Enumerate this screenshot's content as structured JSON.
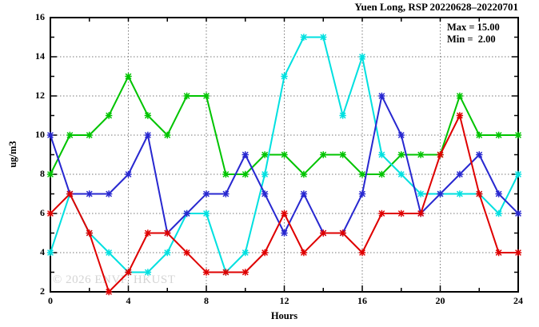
{
  "chart_data": {
    "type": "line",
    "title": "Yuen Long, RSP 20220628–20220701",
    "xlabel": "Hours",
    "ylabel": "ug/m3",
    "annotations": [
      "Max = 15.00",
      "Min =  2.00"
    ],
    "watermark": "© 2026 ENVF, HKUST",
    "xlim": [
      0,
      24
    ],
    "ylim": [
      2,
      16
    ],
    "xticks_major": [
      0,
      4,
      8,
      12,
      16,
      20,
      24
    ],
    "xticks_minor": [
      2,
      6,
      10,
      14,
      18,
      22
    ],
    "yticks_major": [
      2,
      4,
      6,
      8,
      10,
      12,
      14,
      16
    ],
    "yticks_minor": [
      3,
      5,
      7,
      9,
      11,
      13,
      15
    ],
    "grid_x": [
      4,
      8,
      12,
      16,
      20
    ],
    "grid_y": [
      4,
      6,
      8,
      10,
      12,
      14
    ],
    "grid_on": true,
    "legend_position": "top-right-inside",
    "x": [
      0,
      1,
      2,
      3,
      4,
      5,
      6,
      7,
      8,
      9,
      10,
      11,
      12,
      13,
      14,
      15,
      16,
      17,
      18,
      19,
      20,
      21,
      22,
      23,
      24
    ],
    "series": [
      {
        "name": "green",
        "color": "#00C400",
        "values": [
          8,
          10,
          10,
          11,
          13,
          11,
          10,
          12,
          12,
          8,
          8,
          9,
          9,
          8,
          9,
          9,
          8,
          8,
          9,
          9,
          9,
          12,
          10,
          10,
          10
        ]
      },
      {
        "name": "cyan",
        "color": "#00E0E0",
        "values": [
          4,
          7,
          5,
          4,
          3,
          3,
          4,
          6,
          6,
          3,
          4,
          8,
          13,
          15,
          15,
          11,
          14,
          9,
          8,
          7,
          7,
          7,
          7,
          6,
          8
        ]
      },
      {
        "name": "blue",
        "color": "#2828D0",
        "values": [
          10,
          7,
          7,
          7,
          8,
          10,
          5,
          6,
          7,
          7,
          9,
          7,
          5,
          7,
          5,
          5,
          7,
          12,
          10,
          6,
          7,
          8,
          9,
          7,
          6
        ]
      },
      {
        "name": "red",
        "color": "#DF0000",
        "values": [
          6,
          7,
          5,
          2,
          3,
          5,
          5,
          4,
          3,
          3,
          3,
          4,
          6,
          4,
          5,
          5,
          4,
          6,
          6,
          6,
          9,
          11,
          7,
          4,
          4
        ]
      }
    ],
    "colors": {
      "frame": "#000000",
      "grid": "#7a7a7a",
      "watermark_text": "#d4d4d4"
    }
  }
}
